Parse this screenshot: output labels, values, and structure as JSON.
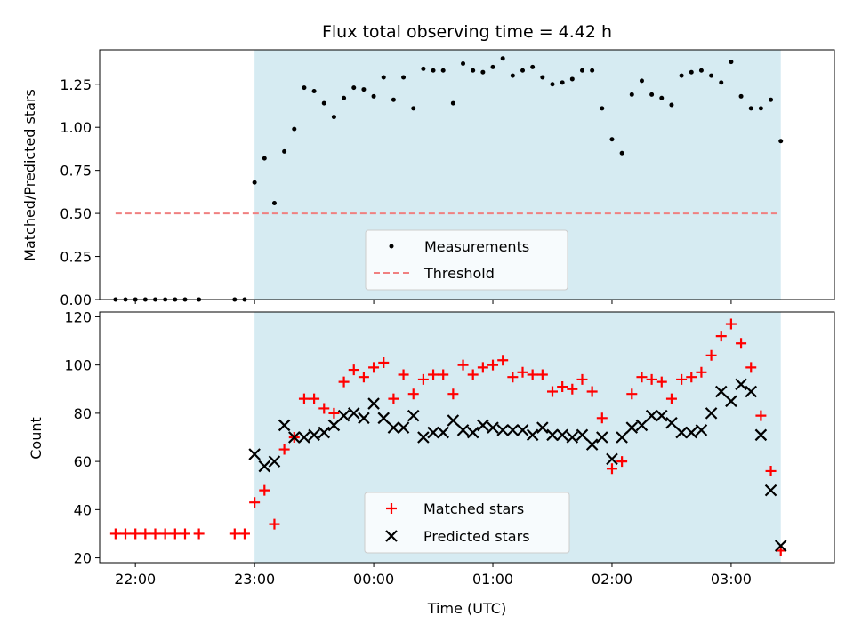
{
  "chart_data": [
    {
      "type": "scatter",
      "title": "Flux total observing time = 4.42 h",
      "xlabel": "",
      "ylabel": "Matched/Predicted stars",
      "xlim": [
        "21:42",
        "03:52"
      ],
      "ylim": [
        0,
        1.45
      ],
      "yticks": [
        "0.00",
        "0.25",
        "0.50",
        "0.75",
        "1.00",
        "1.25"
      ],
      "grid": false,
      "legend_position": "lower-center",
      "shaded_interval": [
        "23:00",
        "03:25"
      ],
      "shaded_color": "#add8e6",
      "threshold": {
        "name": "Threshold",
        "value": 0.5,
        "x_start": "21:50",
        "x_end": "03:25",
        "color": "#f08080"
      },
      "series": [
        {
          "name": "Measurements",
          "color": "#000000",
          "x": [
            "21:50",
            "21:55",
            "22:00",
            "22:05",
            "22:10",
            "22:15",
            "22:20",
            "22:25",
            "22:32",
            "22:50",
            "22:55",
            "23:00",
            "23:05",
            "23:10",
            "23:15",
            "23:20",
            "23:25",
            "23:30",
            "23:35",
            "23:40",
            "23:45",
            "23:50",
            "23:55",
            "00:00",
            "00:05",
            "00:10",
            "00:15",
            "00:20",
            "00:25",
            "00:30",
            "00:35",
            "00:40",
            "00:45",
            "00:50",
            "00:55",
            "01:00",
            "01:05",
            "01:10",
            "01:15",
            "01:20",
            "01:25",
            "01:30",
            "01:35",
            "01:40",
            "01:45",
            "01:50",
            "01:55",
            "02:00",
            "02:05",
            "02:10",
            "02:15",
            "02:20",
            "02:25",
            "02:30",
            "02:35",
            "02:40",
            "02:45",
            "02:50",
            "02:55",
            "03:00",
            "03:05",
            "03:10",
            "03:15",
            "03:20",
            "03:25"
          ],
          "y": [
            0,
            0,
            0,
            0,
            0,
            0,
            0,
            0,
            0,
            0,
            0,
            0.68,
            0.82,
            0.56,
            0.86,
            0.99,
            1.23,
            1.21,
            1.14,
            1.06,
            1.17,
            1.23,
            1.22,
            1.18,
            1.29,
            1.16,
            1.29,
            1.11,
            1.34,
            1.33,
            1.33,
            1.14,
            1.37,
            1.33,
            1.32,
            1.35,
            1.4,
            1.3,
            1.33,
            1.35,
            1.29,
            1.25,
            1.26,
            1.28,
            1.33,
            1.33,
            1.11,
            0.93,
            0.85,
            1.19,
            1.27,
            1.19,
            1.17,
            1.13,
            1.3,
            1.32,
            1.33,
            1.3,
            1.26,
            1.38,
            1.18,
            1.11,
            1.11,
            1.16,
            0.92
          ]
        }
      ]
    },
    {
      "type": "scatter",
      "title": "",
      "xlabel": "Time (UTC)",
      "ylabel": "Count",
      "xlim": [
        "21:42",
        "03:52"
      ],
      "ylim": [
        18,
        122
      ],
      "yticks": [
        "20",
        "40",
        "60",
        "80",
        "100",
        "120"
      ],
      "xticks": [
        "22:00",
        "23:00",
        "00:00",
        "01:00",
        "02:00",
        "03:00"
      ],
      "grid": false,
      "legend_position": "lower-center",
      "shaded_interval": [
        "23:00",
        "03:25"
      ],
      "shaded_color": "#add8e6",
      "series": [
        {
          "name": "Matched stars",
          "marker": "plus",
          "color": "#ff0000",
          "x": [
            "21:50",
            "21:55",
            "22:00",
            "22:05",
            "22:10",
            "22:15",
            "22:20",
            "22:25",
            "22:32",
            "22:50",
            "22:55",
            "23:00",
            "23:05",
            "23:10",
            "23:15",
            "23:20",
            "23:25",
            "23:30",
            "23:35",
            "23:40",
            "23:45",
            "23:50",
            "23:55",
            "00:00",
            "00:05",
            "00:10",
            "00:15",
            "00:20",
            "00:25",
            "00:30",
            "00:35",
            "00:40",
            "00:45",
            "00:50",
            "00:55",
            "01:00",
            "01:05",
            "01:10",
            "01:15",
            "01:20",
            "01:25",
            "01:30",
            "01:35",
            "01:40",
            "01:45",
            "01:50",
            "01:55",
            "02:00",
            "02:05",
            "02:10",
            "02:15",
            "02:20",
            "02:25",
            "02:30",
            "02:35",
            "02:40",
            "02:45",
            "02:50",
            "02:55",
            "03:00",
            "03:05",
            "03:10",
            "03:15",
            "03:20",
            "03:25"
          ],
          "y": [
            30,
            30,
            30,
            30,
            30,
            30,
            30,
            30,
            30,
            30,
            30,
            43,
            48,
            34,
            65,
            70,
            86,
            86,
            82,
            80,
            93,
            98,
            95,
            99,
            101,
            86,
            96,
            88,
            94,
            96,
            96,
            88,
            100,
            96,
            99,
            100,
            102,
            95,
            97,
            96,
            96,
            89,
            91,
            90,
            94,
            89,
            78,
            57,
            60,
            88,
            95,
            94,
            93,
            86,
            94,
            95,
            97,
            104,
            112,
            117,
            109,
            99,
            79,
            56,
            23
          ]
        },
        {
          "name": "Predicted stars",
          "marker": "x",
          "color": "#000000",
          "x": [
            "23:00",
            "23:05",
            "23:10",
            "23:15",
            "23:20",
            "23:25",
            "23:30",
            "23:35",
            "23:40",
            "23:45",
            "23:50",
            "23:55",
            "00:00",
            "00:05",
            "00:10",
            "00:15",
            "00:20",
            "00:25",
            "00:30",
            "00:35",
            "00:40",
            "00:45",
            "00:50",
            "00:55",
            "01:00",
            "01:05",
            "01:10",
            "01:15",
            "01:20",
            "01:25",
            "01:30",
            "01:35",
            "01:40",
            "01:45",
            "01:50",
            "01:55",
            "02:00",
            "02:05",
            "02:10",
            "02:15",
            "02:20",
            "02:25",
            "02:30",
            "02:35",
            "02:40",
            "02:45",
            "02:50",
            "02:55",
            "03:00",
            "03:05",
            "03:10",
            "03:15",
            "03:20",
            "03:25"
          ],
          "y": [
            63,
            58,
            60,
            75,
            70,
            70,
            71,
            72,
            75,
            79,
            80,
            78,
            84,
            78,
            74,
            74,
            79,
            70,
            72,
            72,
            77,
            73,
            72,
            75,
            74,
            73,
            73,
            73,
            71,
            74,
            71,
            71,
            70,
            71,
            67,
            70,
            61,
            70,
            74,
            75,
            79,
            79,
            76,
            72,
            72,
            73,
            80,
            89,
            85,
            92,
            89,
            71,
            48,
            25
          ]
        }
      ]
    }
  ]
}
